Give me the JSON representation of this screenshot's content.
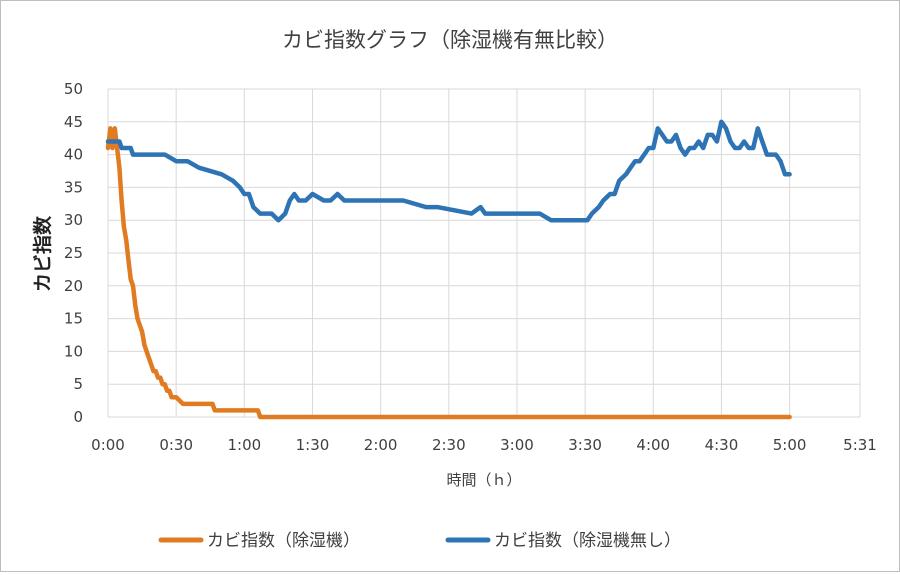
{
  "chart_data": {
    "type": "line",
    "title": "カビ指数グラフ（除湿機有無比較）",
    "xlabel": "時間（ｈ）",
    "ylabel": "カビ指数",
    "ylim": [
      0,
      50
    ],
    "yticks": [
      "0",
      "5",
      "10",
      "15",
      "20",
      "25",
      "30",
      "35",
      "40",
      "45",
      "50"
    ],
    "xlim_minutes": [
      0,
      331
    ],
    "xticks": [
      {
        "m": 0,
        "label": "0:00"
      },
      {
        "m": 30,
        "label": "0:30"
      },
      {
        "m": 60,
        "label": "1:00"
      },
      {
        "m": 90,
        "label": "1:30"
      },
      {
        "m": 120,
        "label": "2:00"
      },
      {
        "m": 150,
        "label": "2:30"
      },
      {
        "m": 180,
        "label": "3:00"
      },
      {
        "m": 210,
        "label": "3:30"
      },
      {
        "m": 240,
        "label": "4:00"
      },
      {
        "m": 270,
        "label": "4:30"
      },
      {
        "m": 300,
        "label": "5:00"
      },
      {
        "m": 331,
        "label": "5:31"
      }
    ],
    "grid": true,
    "legend_position": "bottom",
    "series": [
      {
        "name": "カビ指数（除湿機）",
        "color": "#E07B22",
        "x": [
          0,
          1,
          2,
          3,
          4,
          5,
          6,
          7,
          8,
          9,
          10,
          11,
          12,
          13,
          14,
          15,
          16,
          17,
          18,
          19,
          20,
          21,
          22,
          23,
          24,
          25,
          26,
          27,
          28,
          30,
          33,
          35,
          40,
          45,
          46,
          47,
          50,
          55,
          60,
          66,
          67,
          80,
          100,
          150,
          200,
          250,
          300
        ],
        "y": [
          41,
          44,
          41,
          44,
          41,
          38,
          33,
          29,
          27,
          24,
          21,
          20,
          17,
          15,
          14,
          13,
          11,
          10,
          9,
          8,
          7,
          7,
          6,
          6,
          5,
          5,
          4,
          4,
          3,
          3,
          2,
          2,
          2,
          2,
          2,
          1,
          1,
          1,
          1,
          1,
          0,
          0,
          0,
          0,
          0,
          0,
          0
        ]
      },
      {
        "name": "カビ指数（除湿機無し）",
        "color": "#2E74B5",
        "x": [
          0,
          3,
          5,
          6,
          7,
          10,
          11,
          12,
          13,
          15,
          20,
          25,
          30,
          35,
          40,
          50,
          55,
          58,
          60,
          62,
          64,
          67,
          70,
          72,
          75,
          78,
          80,
          82,
          84,
          87,
          90,
          95,
          98,
          101,
          104,
          110,
          115,
          120,
          130,
          140,
          145,
          160,
          164,
          166,
          168,
          170,
          175,
          180,
          190,
          195,
          200,
          211,
          213,
          216,
          218,
          221,
          223,
          225,
          228,
          230,
          232,
          234,
          236,
          238,
          240,
          242,
          244,
          246,
          248,
          250,
          252,
          254,
          256,
          258,
          260,
          262,
          264,
          266,
          268,
          270,
          272,
          274,
          276,
          278,
          280,
          282,
          284,
          286,
          288,
          290,
          292,
          294,
          296,
          298,
          300
        ],
        "y": [
          42,
          42,
          42,
          41,
          41,
          41,
          40,
          40,
          40,
          40,
          40,
          40,
          39,
          39,
          38,
          37,
          36,
          35,
          34,
          34,
          32,
          31,
          31,
          31,
          30,
          31,
          33,
          34,
          33,
          33,
          34,
          33,
          33,
          34,
          33,
          33,
          33,
          33,
          33,
          32,
          32,
          31,
          32,
          31,
          31,
          31,
          31,
          31,
          31,
          30,
          30,
          30,
          31,
          32,
          33,
          34,
          34,
          36,
          37,
          38,
          39,
          39,
          40,
          41,
          41,
          44,
          43,
          42,
          42,
          43,
          41,
          40,
          41,
          41,
          42,
          41,
          43,
          43,
          42,
          45,
          44,
          42,
          41,
          41,
          42,
          41,
          41,
          44,
          42,
          40,
          40,
          40,
          39,
          37,
          37
        ]
      }
    ]
  }
}
